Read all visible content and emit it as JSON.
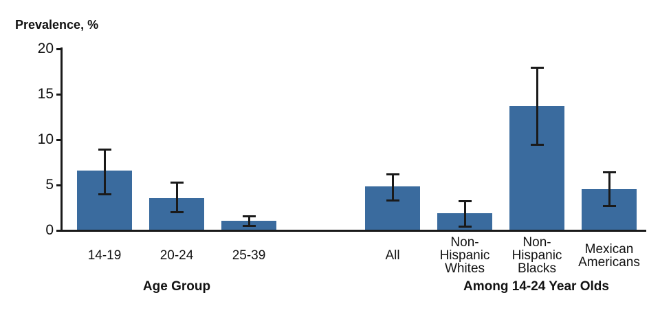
{
  "chart_data": {
    "type": "bar",
    "title": "Prevalence, %",
    "ylabel": "Prevalence, %",
    "xlabel": "",
    "ylim": [
      0,
      20
    ],
    "yticks": [
      0,
      5,
      10,
      15,
      20
    ],
    "grid": false,
    "legend": false,
    "bar_color": "#3A6B9E",
    "error_bar_color": "#1a1a1a",
    "axis_color": "#1a1a1a",
    "error_bars": "95% confidence intervals",
    "groups": [
      {
        "title": "Age Group",
        "bars": [
          {
            "label": "14-19",
            "label_lines": [
              "14-19"
            ],
            "value": 6.5,
            "ci_low": 3.9,
            "ci_high": 8.9
          },
          {
            "label": "20-24",
            "label_lines": [
              "20-24"
            ],
            "value": 3.5,
            "ci_low": 1.9,
            "ci_high": 5.2
          },
          {
            "label": "25-39",
            "label_lines": [
              "25-39"
            ],
            "value": 1.0,
            "ci_low": 0.4,
            "ci_high": 1.5
          }
        ]
      },
      {
        "title": "Among 14-24 Year Olds",
        "bars": [
          {
            "label": "All",
            "label_lines": [
              "All"
            ],
            "value": 4.8,
            "ci_low": 3.2,
            "ci_high": 6.1
          },
          {
            "label": "Non-Hispanic Whites",
            "label_lines": [
              "Non-",
              "Hispanic",
              "Whites"
            ],
            "value": 1.8,
            "ci_low": 0.3,
            "ci_high": 3.2
          },
          {
            "label": "Non-Hispanic Blacks",
            "label_lines": [
              "Non-",
              "Hispanic",
              "Blacks"
            ],
            "value": 13.6,
            "ci_low": 9.3,
            "ci_high": 17.9
          },
          {
            "label": "Mexican Americans",
            "label_lines": [
              "Mexican",
              "Americans"
            ],
            "value": 4.5,
            "ci_low": 2.6,
            "ci_high": 6.4
          }
        ]
      }
    ]
  }
}
